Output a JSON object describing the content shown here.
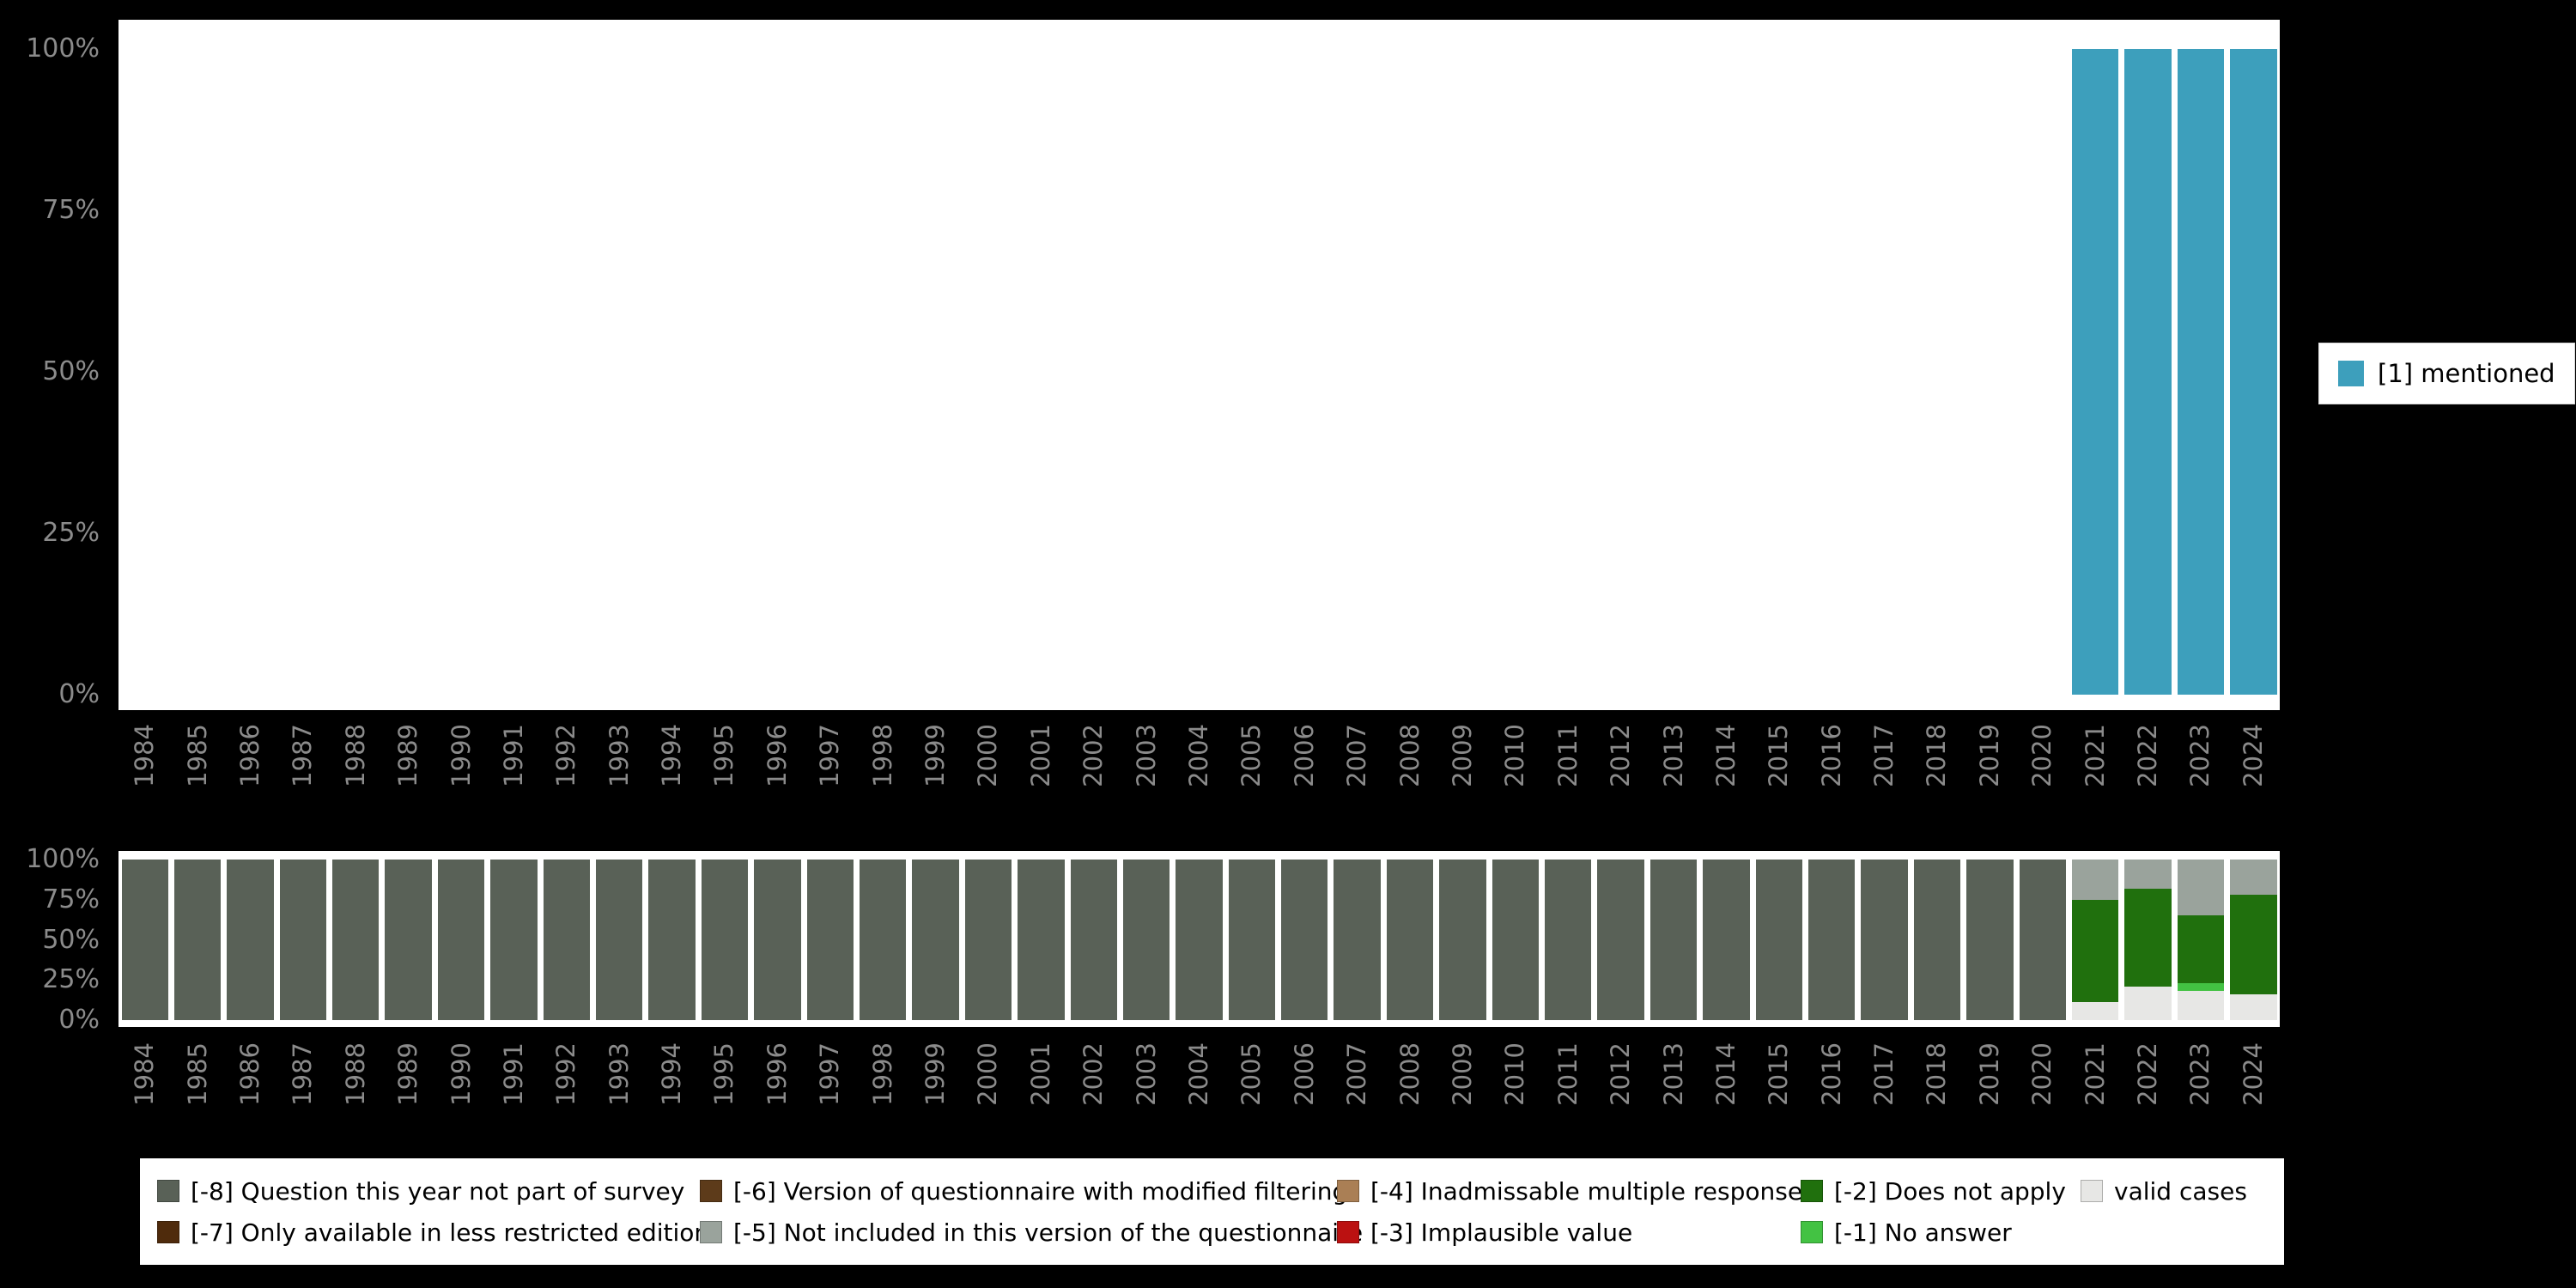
{
  "colors": {
    "background": "#000000",
    "plot_bg": "#ffffff",
    "axis_label": "#8b8b8b",
    "mentioned": "#3d9fbc",
    "m8": "#596157",
    "m7": "#4f2b0c",
    "m6": "#5d3b1a",
    "m5": "#9aa39c",
    "m4": "#aa7f55",
    "m3": "#bb1111",
    "m2": "#20700d",
    "m1": "#43c243",
    "valid": "#e7e7e5"
  },
  "top_legend": {
    "label": "[1] mentioned"
  },
  "bottom_legend": {
    "rows": [
      [
        {
          "key": "m8",
          "label": "[-8] Question this year not part of survey"
        },
        {
          "key": "m6",
          "label": "[-6] Version of questionnaire with modified filtering"
        },
        {
          "key": "m4",
          "label": "[-4] Inadmissable multiple response"
        },
        {
          "key": "m2",
          "label": "[-2] Does not apply"
        },
        {
          "key": "valid",
          "label": "valid cases"
        }
      ],
      [
        {
          "key": "m7",
          "label": "[-7] Only available in less restricted edition"
        },
        {
          "key": "m5",
          "label": "[-5] Not included in this version of the questionnaire"
        },
        {
          "key": "m3",
          "label": "[-3] Implausible value"
        },
        {
          "key": "m1",
          "label": "[-1] No answer"
        }
      ]
    ]
  },
  "chart_data": [
    {
      "type": "bar",
      "title": "",
      "xlabel": "",
      "ylabel": "",
      "ylim": [
        0,
        100
      ],
      "yticks": [
        "0%",
        "25%",
        "50%",
        "75%",
        "100%"
      ],
      "legend": {
        "position": "right",
        "items": [
          {
            "label": "[1] mentioned",
            "color": "#3d9fbc"
          }
        ]
      },
      "categories": [
        "1984",
        "1985",
        "1986",
        "1987",
        "1988",
        "1989",
        "1990",
        "1991",
        "1992",
        "1993",
        "1994",
        "1995",
        "1996",
        "1997",
        "1998",
        "1999",
        "2000",
        "2001",
        "2002",
        "2003",
        "2004",
        "2005",
        "2006",
        "2007",
        "2008",
        "2009",
        "2010",
        "2011",
        "2012",
        "2013",
        "2014",
        "2015",
        "2016",
        "2017",
        "2018",
        "2019",
        "2020",
        "2021",
        "2022",
        "2023",
        "2024"
      ],
      "series": [
        {
          "name": "[1] mentioned",
          "color": "#3d9fbc",
          "values": [
            0,
            0,
            0,
            0,
            0,
            0,
            0,
            0,
            0,
            0,
            0,
            0,
            0,
            0,
            0,
            0,
            0,
            0,
            0,
            0,
            0,
            0,
            0,
            0,
            0,
            0,
            0,
            0,
            0,
            0,
            0,
            0,
            0,
            0,
            0,
            0,
            0,
            100,
            100,
            100,
            100
          ]
        }
      ]
    },
    {
      "type": "bar-stacked",
      "title": "",
      "xlabel": "",
      "ylabel": "",
      "ylim": [
        0,
        100
      ],
      "yticks": [
        "0%",
        "25%",
        "50%",
        "75%",
        "100%"
      ],
      "legend": {
        "position": "bottom"
      },
      "categories": [
        "1984",
        "1985",
        "1986",
        "1987",
        "1988",
        "1989",
        "1990",
        "1991",
        "1992",
        "1993",
        "1994",
        "1995",
        "1996",
        "1997",
        "1998",
        "1999",
        "2000",
        "2001",
        "2002",
        "2003",
        "2004",
        "2005",
        "2006",
        "2007",
        "2008",
        "2009",
        "2010",
        "2011",
        "2012",
        "2013",
        "2014",
        "2015",
        "2016",
        "2017",
        "2018",
        "2019",
        "2020",
        "2021",
        "2022",
        "2023",
        "2024"
      ],
      "stacks": [
        [
          [
            "m8",
            100
          ]
        ],
        [
          [
            "m8",
            100
          ]
        ],
        [
          [
            "m8",
            100
          ]
        ],
        [
          [
            "m8",
            100
          ]
        ],
        [
          [
            "m8",
            100
          ]
        ],
        [
          [
            "m8",
            100
          ]
        ],
        [
          [
            "m8",
            100
          ]
        ],
        [
          [
            "m8",
            100
          ]
        ],
        [
          [
            "m8",
            100
          ]
        ],
        [
          [
            "m8",
            100
          ]
        ],
        [
          [
            "m8",
            100
          ]
        ],
        [
          [
            "m8",
            100
          ]
        ],
        [
          [
            "m8",
            100
          ]
        ],
        [
          [
            "m8",
            100
          ]
        ],
        [
          [
            "m8",
            100
          ]
        ],
        [
          [
            "m8",
            100
          ]
        ],
        [
          [
            "m8",
            100
          ]
        ],
        [
          [
            "m8",
            100
          ]
        ],
        [
          [
            "m8",
            100
          ]
        ],
        [
          [
            "m8",
            100
          ]
        ],
        [
          [
            "m8",
            100
          ]
        ],
        [
          [
            "m8",
            100
          ]
        ],
        [
          [
            "m8",
            100
          ]
        ],
        [
          [
            "m8",
            100
          ]
        ],
        [
          [
            "m8",
            100
          ]
        ],
        [
          [
            "m8",
            100
          ]
        ],
        [
          [
            "m8",
            100
          ]
        ],
        [
          [
            "m8",
            100
          ]
        ],
        [
          [
            "m8",
            100
          ]
        ],
        [
          [
            "m8",
            100
          ]
        ],
        [
          [
            "m8",
            100
          ]
        ],
        [
          [
            "m8",
            100
          ]
        ],
        [
          [
            "m8",
            100
          ]
        ],
        [
          [
            "m8",
            100
          ]
        ],
        [
          [
            "m8",
            100
          ]
        ],
        [
          [
            "m8",
            100
          ]
        ],
        [
          [
            "m8",
            100
          ]
        ],
        [
          [
            "valid",
            11
          ],
          [
            "m2",
            64
          ],
          [
            "m5",
            25
          ]
        ],
        [
          [
            "valid",
            21
          ],
          [
            "m2",
            61
          ],
          [
            "m5",
            18
          ]
        ],
        [
          [
            "valid",
            18
          ],
          [
            "m1",
            5
          ],
          [
            "m2",
            42
          ],
          [
            "m5",
            35
          ]
        ],
        [
          [
            "valid",
            16
          ],
          [
            "m2",
            62
          ],
          [
            "m5",
            22
          ]
        ]
      ]
    }
  ]
}
